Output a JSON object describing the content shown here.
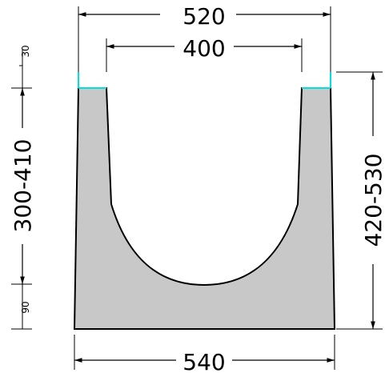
{
  "colors": {
    "background": "#ffffff",
    "body_fill": "#c8c8c8",
    "outline": "#000000",
    "edge_accent": "#00e0e0",
    "dimension_line": "#000000"
  },
  "dimensions": {
    "top_outer_width": "520",
    "top_inner_width": "400",
    "bottom_width": "540",
    "left_total_height": "300-410",
    "right_total_height": "420-530",
    "top_edge_height": "30",
    "base_thickness": "90"
  }
}
